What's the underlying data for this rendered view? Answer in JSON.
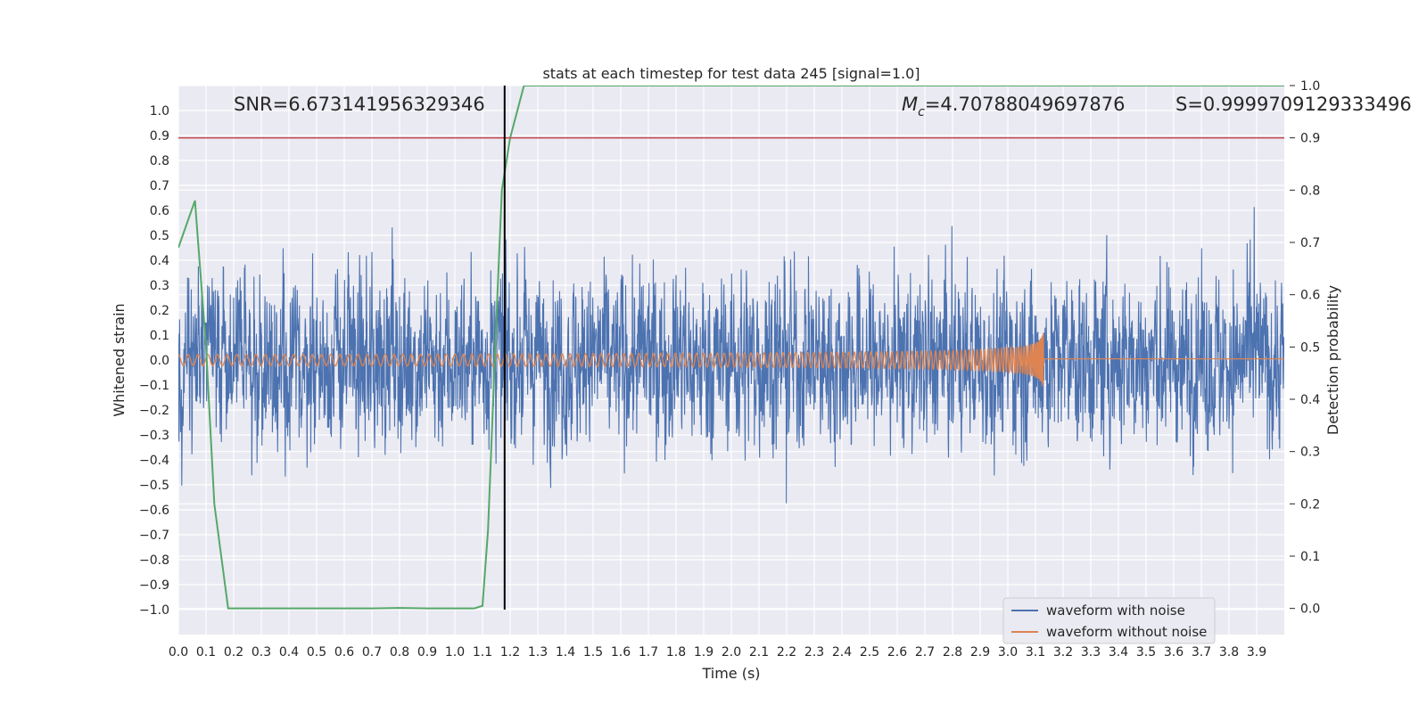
{
  "chart_data": {
    "type": "line",
    "title": "stats at each timestep for test data 245 [signal=1.0]",
    "xlabel": "Time (s)",
    "ylabel": "Whitened strain",
    "y2label": "Detection probability",
    "xlim": [
      0.0,
      4.0
    ],
    "ylim": [
      -1.1,
      1.1
    ],
    "y2lim": [
      -0.05,
      1.0
    ],
    "xticks": [
      "0.0",
      "0.1",
      "0.2",
      "0.3",
      "0.4",
      "0.5",
      "0.6",
      "0.7",
      "0.8",
      "0.9",
      "1.0",
      "1.1",
      "1.2",
      "1.3",
      "1.4",
      "1.5",
      "1.6",
      "1.7",
      "1.8",
      "1.9",
      "2.0",
      "2.1",
      "2.2",
      "2.3",
      "2.4",
      "2.5",
      "2.6",
      "2.7",
      "2.8",
      "2.9",
      "3.0",
      "3.1",
      "3.2",
      "3.3",
      "3.4",
      "3.5",
      "3.6",
      "3.7",
      "3.8",
      "3.9"
    ],
    "yticks": [
      "1.0",
      "0.9",
      "0.8",
      "0.7",
      "0.6",
      "0.5",
      "0.4",
      "0.3",
      "0.2",
      "0.1",
      "0.0",
      "−0.1",
      "−0.2",
      "−0.3",
      "−0.4",
      "−0.5",
      "−0.6",
      "−0.7",
      "−0.8",
      "−0.9",
      "−1.0"
    ],
    "y2ticks": [
      "1.0",
      "0.9",
      "0.8",
      "0.7",
      "0.6",
      "0.5",
      "0.4",
      "0.3",
      "0.2",
      "0.1",
      "0.0"
    ],
    "grid": true,
    "legend_position": "lower-right",
    "annotations": {
      "snr": "SNR=6.673141956329346",
      "mc_symbol": "M",
      "mc_sub": "c",
      "mc_value": "=4.70788049697876",
      "s": "S=0.9999709129333496"
    },
    "threshold": {
      "y2": 0.9,
      "color": "#c44e52"
    },
    "vline": {
      "x": 1.18,
      "color": "#000000"
    },
    "series": [
      {
        "name": "waveform with noise",
        "axis": "left",
        "color": "#4c72b0",
        "kind": "noise",
        "amplitude": 0.32,
        "duration": 4.0
      },
      {
        "name": "waveform without noise",
        "axis": "left",
        "color": "#dd8452",
        "kind": "chirp",
        "t_merge": 3.13,
        "peak": 0.19
      },
      {
        "axis": "right",
        "color": "#55a868",
        "kind": "probability",
        "x": [
          0.0,
          0.06,
          0.1,
          0.13,
          0.18,
          0.3,
          0.5,
          0.7,
          0.8,
          0.9,
          1.0,
          1.07,
          1.1,
          1.12,
          1.15,
          1.17,
          1.2,
          1.25,
          1.5,
          2.0,
          2.5,
          3.0,
          3.5,
          4.0
        ],
        "y": [
          0.69,
          0.78,
          0.5,
          0.2,
          0.0,
          0.0,
          0.0,
          0.0,
          0.001,
          0.0,
          0.0,
          0.0,
          0.005,
          0.15,
          0.55,
          0.8,
          0.9,
          1.0,
          1.0,
          1.0,
          1.0,
          1.0,
          1.0,
          1.0
        ]
      }
    ]
  }
}
